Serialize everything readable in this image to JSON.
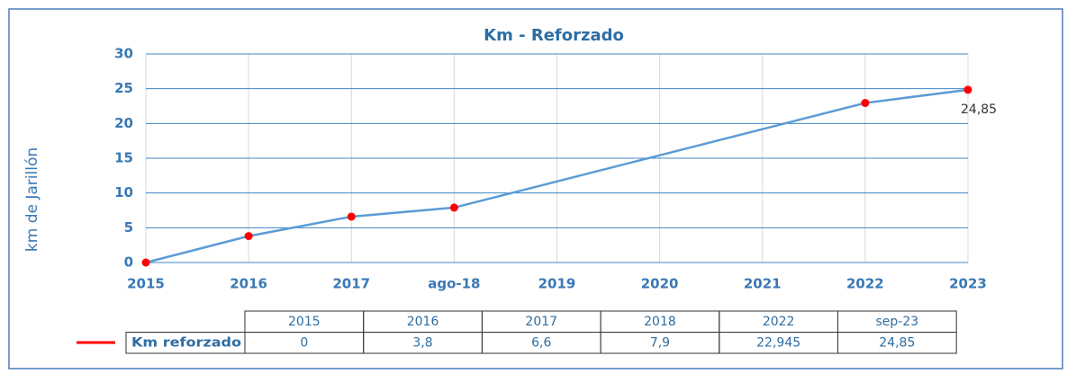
{
  "chart_data": {
    "type": "line",
    "title": "Km - Reforzado",
    "y_label": "km de Jarillón",
    "categories": [
      "2015",
      "2016",
      "2017",
      "ago-18",
      "2019",
      "2020",
      "2021",
      "2022",
      "2023"
    ],
    "series": [
      {
        "name": "Km reforzado",
        "color": "#5b9bd5",
        "marker_color": "#ff0000",
        "values": [
          0,
          3.8,
          6.6,
          7.9,
          null,
          null,
          null,
          22.945,
          24.85
        ],
        "value_labels": [
          null,
          null,
          null,
          null,
          null,
          null,
          null,
          null,
          "24,85"
        ]
      }
    ],
    "ylim": [
      0,
      30
    ],
    "yticks": [
      0,
      5,
      10,
      15,
      20,
      25,
      30
    ],
    "grid": true
  },
  "table": {
    "columns": [
      "2015",
      "2016",
      "2017",
      "2018",
      "2022",
      "sep-23"
    ],
    "cells": [
      "0",
      "3,8",
      "6,6",
      "7,9",
      "22,945",
      "24,85"
    ]
  }
}
